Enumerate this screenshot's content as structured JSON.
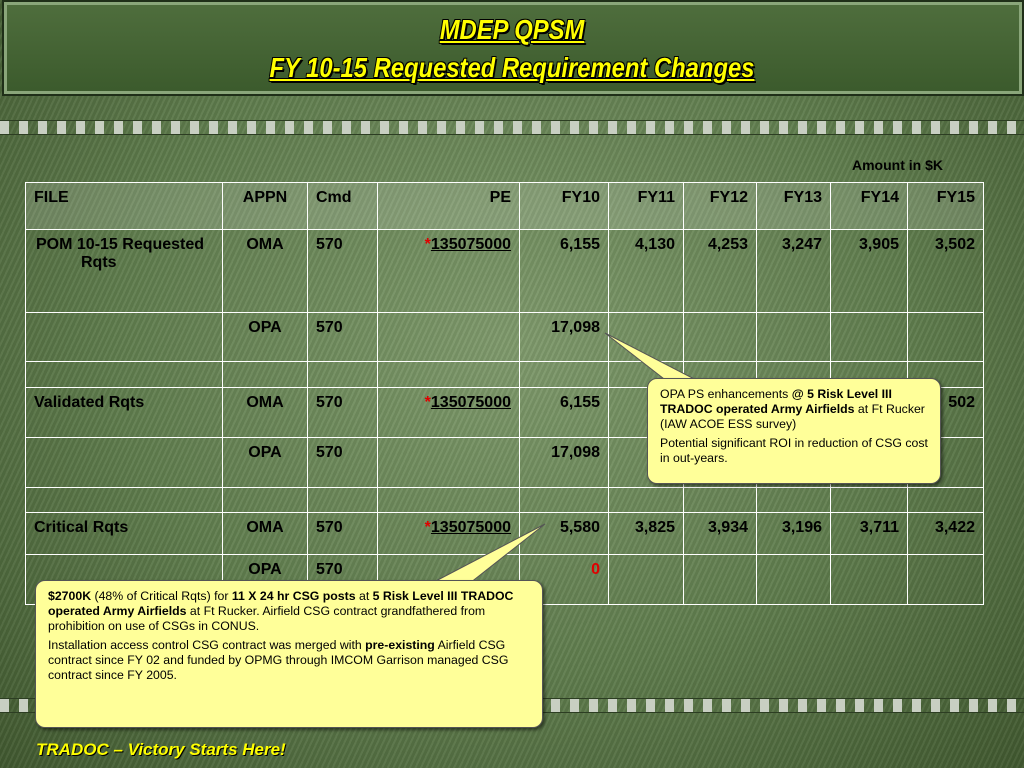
{
  "header": {
    "title": "MDEP QPSM",
    "subtitle": "FY 10-15 Requested Requirement Changes"
  },
  "table": {
    "note": "Amount in $K",
    "columns": [
      "FILE",
      "APPN",
      "Cmd",
      "PE",
      "FY10",
      "FY11",
      "FY12",
      "FY13",
      "FY14",
      "FY15"
    ],
    "rows": [
      [
        "POM 10-15 Requested Rqts",
        "OMA",
        "570",
        {
          "asterisk": "*",
          "number": "135075000"
        },
        "6,155",
        "4,130",
        "4,253",
        "3,247",
        "3,905",
        "3,502"
      ],
      [
        null,
        "OPA",
        "570",
        null,
        "17,098",
        null,
        null,
        null,
        null,
        null
      ],
      [
        null,
        null,
        null,
        null,
        null,
        null,
        null,
        null,
        null,
        null
      ],
      [
        "Validated Rqts",
        "OMA",
        "570",
        {
          "asterisk": "*",
          "number": "135075000"
        },
        "6,155",
        "4,1",
        null,
        null,
        null,
        "502"
      ],
      [
        null,
        "OPA",
        "570",
        null,
        "17,098",
        null,
        null,
        null,
        null,
        null
      ],
      [
        null,
        null,
        null,
        null,
        null,
        null,
        null,
        null,
        null,
        null
      ],
      [
        "Critical Rqts",
        "OMA",
        "570",
        {
          "asterisk": "*",
          "number": "135075000"
        },
        "5,580",
        "3,825",
        "3,934",
        "3,196",
        "3,711",
        "3,422"
      ],
      [
        null,
        "OPA",
        "570",
        null,
        "0",
        null,
        null,
        null,
        null,
        null
      ]
    ]
  },
  "callouts": [
    {
      "paragraphs": [
        [
          {
            "text": "OPA PS enhancements "
          },
          {
            "text": "@ 5 Risk Level III TRADOC operated Army Airfields",
            "bold": true
          },
          {
            "text": " at Ft Rucker (IAW ACOE ESS survey)"
          }
        ],
        [
          {
            "text": "Potential significant ROI in reduction of CSG cost in out-years."
          }
        ]
      ]
    },
    {
      "paragraphs": [
        [
          {
            "text": "$2700K",
            "bold": true
          },
          {
            "text": " (48% of Critical Rqts) for "
          },
          {
            "text": "11 X 24 hr CSG posts",
            "bold": true
          },
          {
            "text": " at "
          },
          {
            "text": "5 Risk Level III TRADOC operated Army Airfields",
            "bold": true
          },
          {
            "text": " at Ft Rucker.  Airfield CSG contract grandfathered from prohibition on use of CSGs in CONUS."
          }
        ],
        [
          {
            "text": "Installation access control CSG contract was merged with "
          },
          {
            "text": "pre-existing",
            "bold": true
          },
          {
            "text": " Airfield CSG contract since FY 02 and funded by OPMG through IMCOM Garrison managed CSG contract since FY 2005."
          }
        ]
      ]
    }
  ],
  "footer": {
    "slogan": "TRADOC – Victory Starts Here!"
  }
}
